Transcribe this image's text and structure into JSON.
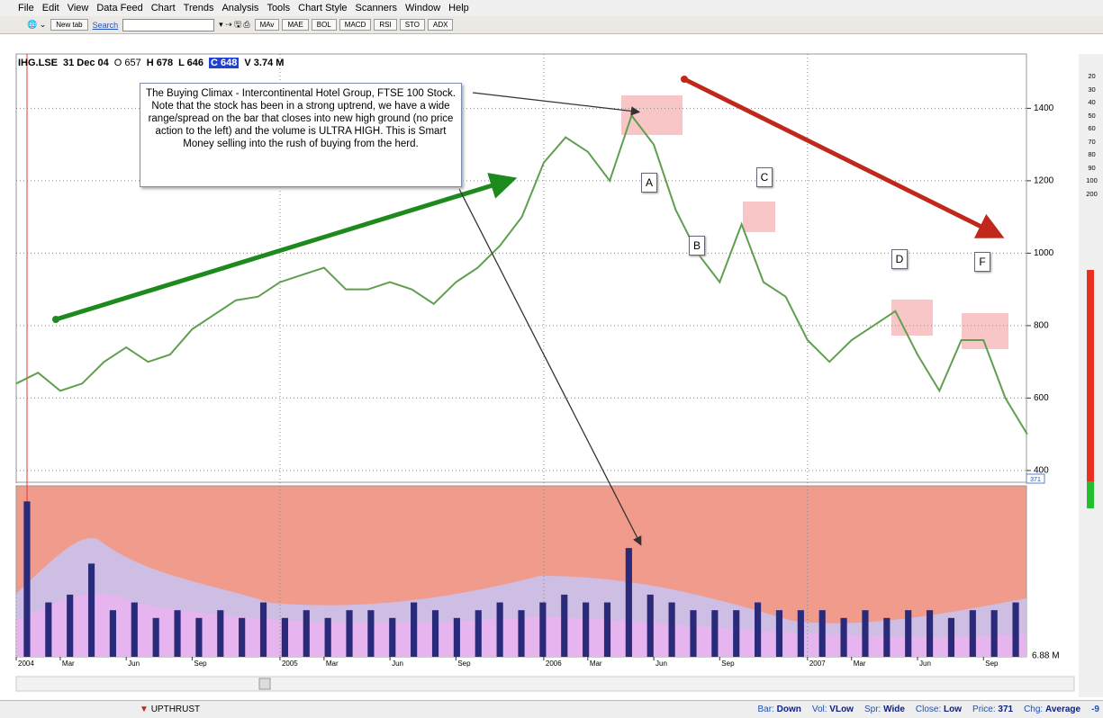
{
  "menu": [
    "File",
    "Edit",
    "View",
    "Data Feed",
    "Chart",
    "Trends",
    "Analysis",
    "Tools",
    "Chart Style",
    "Scanners",
    "Window",
    "Help"
  ],
  "toolbar": {
    "new_tab": "New tab",
    "search": "Search",
    "buttons": [
      "MAv",
      "MAE",
      "BOL",
      "MACD",
      "RSI",
      "STO",
      "ADX"
    ]
  },
  "header": {
    "symbol": "IHG.LSE",
    "date": "31 Dec 04",
    "open": "O 657",
    "high": "H 678",
    "low": "L 646",
    "close": "C 648",
    "volume": "V 3.74 M"
  },
  "annotation": "The Buying Climax - Intercontinental Hotel Group, FTSE 100 Stock. Note that the stock has been in a strong uptrend, we have a wide range/spread on the bar that closes into new high ground (no price action to the left) and the volume is ULTRA HIGH. This is Smart Money selling into the rush of buying from the herd.",
  "labels": [
    "A",
    "B",
    "C",
    "D",
    "F"
  ],
  "zoom_scale": [
    "20",
    "30",
    "40",
    "50",
    "60",
    "70",
    "80",
    "90",
    "100",
    "200"
  ],
  "price_box": "371",
  "volume_axis": "6.88 M",
  "status": {
    "legend": "UPTHRUST",
    "items": [
      {
        "label": "Bar:",
        "value": "Down"
      },
      {
        "label": "Vol:",
        "value": "VLow"
      },
      {
        "label": "Spr:",
        "value": "Wide"
      },
      {
        "label": "Close:",
        "value": "Low"
      },
      {
        "label": "Price:",
        "value": "371"
      },
      {
        "label": "Chg:",
        "value": "Average"
      }
    ],
    "tail": "-9"
  },
  "chart_data": [
    {
      "type": "line",
      "color": "#5f9f4f",
      "x": [
        2004.0,
        2004.083,
        2004.167,
        2004.25,
        2004.333,
        2004.417,
        2004.5,
        2004.583,
        2004.667,
        2004.75,
        2004.833,
        2004.917,
        2005.0,
        2005.083,
        2005.167,
        2005.25,
        2005.333,
        2005.417,
        2005.5,
        2005.583,
        2005.667,
        2005.75,
        2005.833,
        2005.917,
        2006.0,
        2006.083,
        2006.167,
        2006.25,
        2006.333,
        2006.417,
        2006.5,
        2006.583,
        2006.667,
        2006.75,
        2006.833,
        2006.917,
        2007.0,
        2007.083,
        2007.167,
        2007.25,
        2007.333,
        2007.417,
        2007.5,
        2007.583,
        2007.667,
        2007.75,
        2007.833
      ],
      "values": [
        640,
        670,
        620,
        640,
        700,
        740,
        700,
        720,
        790,
        830,
        870,
        880,
        920,
        940,
        960,
        900,
        900,
        920,
        900,
        860,
        920,
        960,
        1020,
        1100,
        1250,
        1320,
        1280,
        1200,
        1380,
        1300,
        1120,
        1000,
        920,
        1080,
        920,
        880,
        760,
        700,
        760,
        800,
        840,
        720,
        620,
        760,
        760,
        600,
        500
      ],
      "xlim": [
        2004,
        2007.83
      ],
      "xticks": [
        2004,
        {
          "value": 2004.167,
          "label": "Mar"
        },
        {
          "value": 2004.417,
          "label": "Jun"
        },
        {
          "value": 2004.667,
          "label": "Sep"
        },
        2005,
        {
          "value": 2005.167,
          "label": "Mar"
        },
        {
          "value": 2005.417,
          "label": "Jun"
        },
        {
          "value": 2005.667,
          "label": "Sep"
        },
        2006,
        {
          "value": 2006.167,
          "label": "Mar"
        },
        {
          "value": 2006.417,
          "label": "Jun"
        },
        {
          "value": 2006.667,
          "label": "Sep"
        },
        2007,
        {
          "value": 2007.167,
          "label": "Mar"
        },
        {
          "value": 2007.417,
          "label": "Jun"
        },
        {
          "value": 2007.667,
          "label": "Sep"
        }
      ],
      "ylim": [
        367.5,
        1550
      ],
      "yticks": [
        400,
        600,
        800,
        1000,
        1200,
        1400
      ],
      "grid": true
    },
    {
      "type": "bar",
      "color": "#2a2a7a",
      "values": [
        20,
        7,
        8,
        12,
        6,
        7,
        5,
        6,
        5,
        6,
        5,
        7,
        5,
        6,
        5,
        6,
        6,
        5,
        7,
        6,
        5,
        6,
        7,
        6,
        7,
        8,
        7,
        7,
        14,
        8,
        7,
        6,
        6,
        6,
        7,
        6,
        6,
        6,
        5,
        6,
        5,
        6,
        6,
        5,
        6,
        6,
        7
      ],
      "ylim": [
        0,
        22
      ]
    }
  ]
}
